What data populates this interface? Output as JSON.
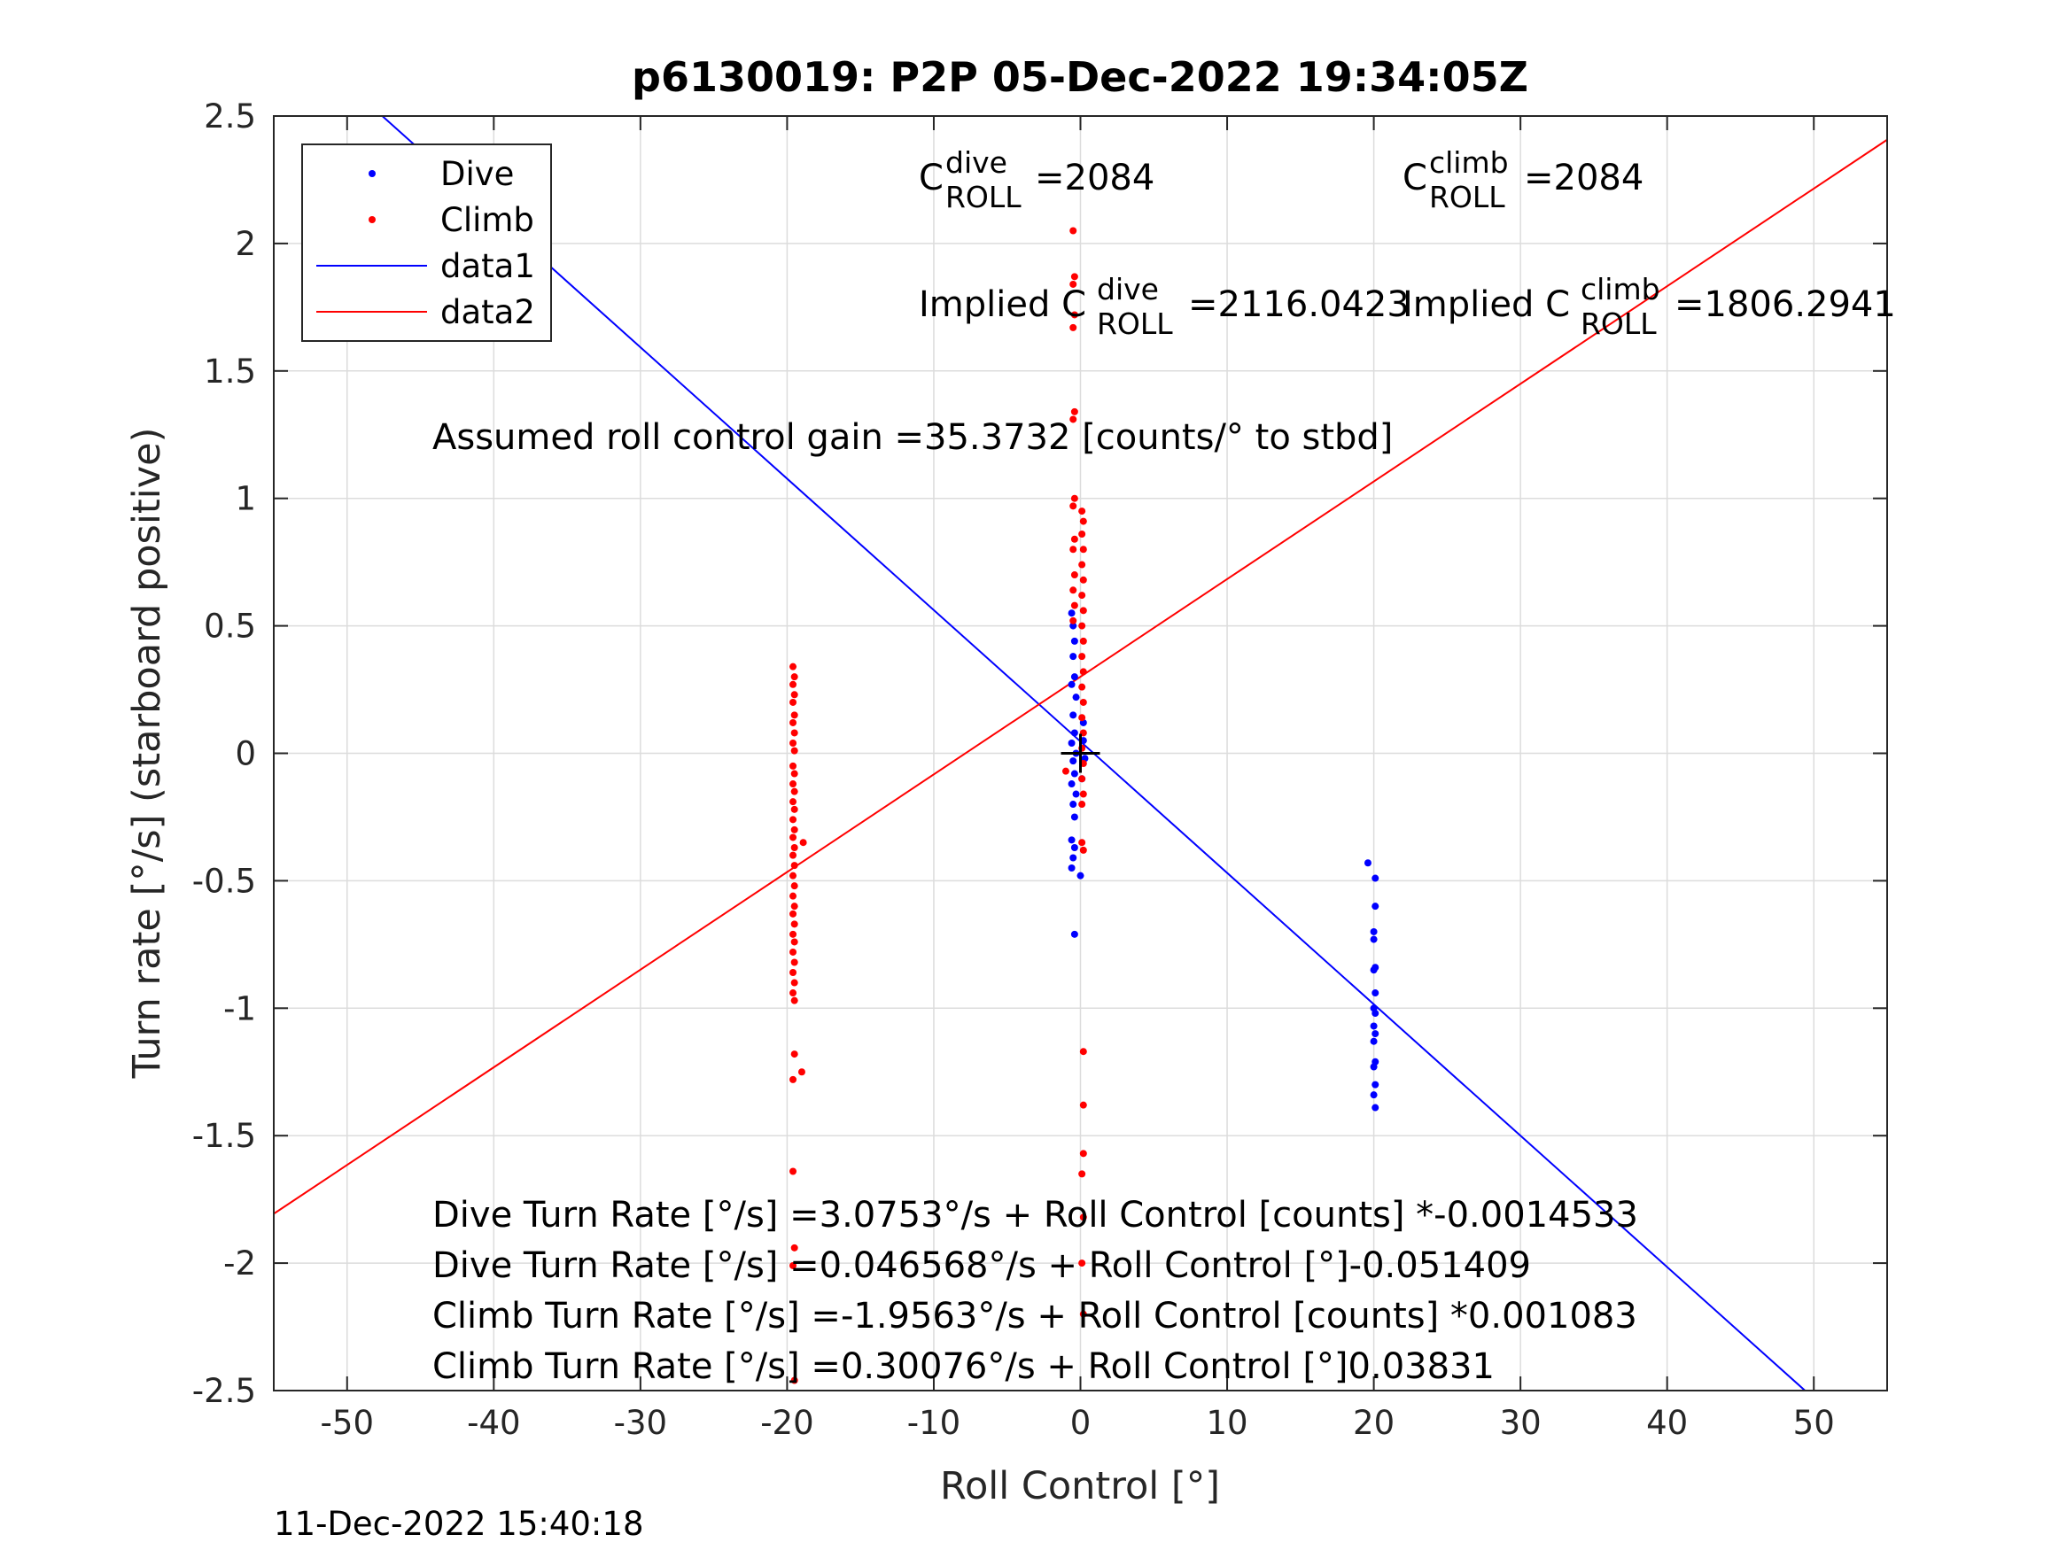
{
  "chart_data": {
    "type": "scatter",
    "title": "p6130019: P2P 05-Dec-2022 19:34:05Z",
    "xlabel": "Roll Control [°]",
    "ylabel": "Turn rate [°/s] (starboard positive)",
    "xlim": [
      -55,
      55
    ],
    "ylim": [
      -2.5,
      2.5
    ],
    "xticks": [
      -50,
      -40,
      -30,
      -20,
      -10,
      0,
      10,
      20,
      30,
      40,
      50
    ],
    "xtick_labels": [
      "-50",
      "-40",
      "-30",
      "-20",
      "-10",
      "0",
      "10",
      "20",
      "30",
      "40",
      "50"
    ],
    "yticks": [
      2.5,
      2,
      1.5,
      1,
      0.5,
      0,
      -0.5,
      -1,
      -1.5,
      -2,
      -2.5
    ],
    "ytick_labels": [
      "2.5",
      "2",
      "1.5",
      "1",
      "0.5",
      "0",
      "-0.5",
      "-1",
      "-1.5",
      "-2",
      "-2.5"
    ],
    "grid": true,
    "legend_position": "top-left",
    "series": [
      {
        "name": "Dive",
        "kind": "scatter",
        "color": "#0000ff",
        "points": [
          [
            -0.6,
            0.55
          ],
          [
            -0.5,
            0.5
          ],
          [
            -0.4,
            0.44
          ],
          [
            -0.5,
            0.38
          ],
          [
            -0.4,
            0.3
          ],
          [
            -0.6,
            0.27
          ],
          [
            -0.3,
            0.22
          ],
          [
            -0.5,
            0.15
          ],
          [
            -0.4,
            0.08
          ],
          [
            -0.6,
            0.04
          ],
          [
            -0.3,
            0.0
          ],
          [
            -0.5,
            -0.03
          ],
          [
            -0.4,
            -0.08
          ],
          [
            -0.6,
            -0.12
          ],
          [
            -0.3,
            -0.16
          ],
          [
            -0.5,
            -0.2
          ],
          [
            -0.4,
            -0.25
          ],
          [
            -0.6,
            -0.34
          ],
          [
            -0.4,
            -0.37
          ],
          [
            -0.5,
            -0.41
          ],
          [
            -0.6,
            -0.45
          ],
          [
            0.0,
            -0.48
          ],
          [
            -0.4,
            -0.71
          ],
          [
            0.2,
            0.05
          ],
          [
            0.3,
            -0.02
          ],
          [
            0.1,
            -0.1
          ],
          [
            0.2,
            0.12
          ],
          [
            19.6,
            -0.43
          ],
          [
            20.1,
            -0.49
          ],
          [
            20.1,
            -0.6
          ],
          [
            20.0,
            -0.7
          ],
          [
            20.0,
            -0.73
          ],
          [
            20.1,
            -0.84
          ],
          [
            20.0,
            -0.85
          ],
          [
            20.1,
            -0.94
          ],
          [
            20.0,
            -1.0
          ],
          [
            20.1,
            -1.02
          ],
          [
            20.0,
            -1.07
          ],
          [
            20.1,
            -1.1
          ],
          [
            20.0,
            -1.13
          ],
          [
            20.1,
            -1.21
          ],
          [
            20.0,
            -1.23
          ],
          [
            20.1,
            -1.3
          ],
          [
            20.0,
            -1.34
          ],
          [
            20.1,
            -1.39
          ]
        ]
      },
      {
        "name": "Climb",
        "kind": "scatter",
        "color": "#ff0000",
        "points": [
          [
            -19.6,
            0.34
          ],
          [
            -19.5,
            0.3
          ],
          [
            -19.6,
            0.27
          ],
          [
            -19.5,
            0.23
          ],
          [
            -19.6,
            0.2
          ],
          [
            -19.5,
            0.15
          ],
          [
            -19.6,
            0.12
          ],
          [
            -19.5,
            0.08
          ],
          [
            -19.6,
            0.04
          ],
          [
            -19.5,
            0.01
          ],
          [
            -19.6,
            -0.05
          ],
          [
            -19.5,
            -0.08
          ],
          [
            -19.6,
            -0.12
          ],
          [
            -19.5,
            -0.15
          ],
          [
            -19.6,
            -0.19
          ],
          [
            -19.5,
            -0.22
          ],
          [
            -19.6,
            -0.26
          ],
          [
            -19.5,
            -0.3
          ],
          [
            -19.6,
            -0.33
          ],
          [
            -19.5,
            -0.37
          ],
          [
            -19.6,
            -0.4
          ],
          [
            -19.5,
            -0.44
          ],
          [
            -19.6,
            -0.48
          ],
          [
            -19.5,
            -0.52
          ],
          [
            -19.6,
            -0.56
          ],
          [
            -19.5,
            -0.6
          ],
          [
            -19.6,
            -0.63
          ],
          [
            -19.5,
            -0.67
          ],
          [
            -19.6,
            -0.71
          ],
          [
            -19.5,
            -0.74
          ],
          [
            -19.6,
            -0.78
          ],
          [
            -19.5,
            -0.82
          ],
          [
            -19.6,
            -0.86
          ],
          [
            -19.5,
            -0.9
          ],
          [
            -19.6,
            -0.94
          ],
          [
            -19.5,
            -0.97
          ],
          [
            -18.9,
            -0.35
          ],
          [
            -19.5,
            -1.18
          ],
          [
            -19.0,
            -1.25
          ],
          [
            -19.6,
            -1.28
          ],
          [
            -19.6,
            -1.64
          ],
          [
            -19.5,
            -1.94
          ],
          [
            -19.6,
            -2.01
          ],
          [
            -19.5,
            -2.46
          ],
          [
            -0.5,
            2.05
          ],
          [
            -0.4,
            1.87
          ],
          [
            -0.5,
            1.84
          ],
          [
            -0.4,
            1.72
          ],
          [
            -0.5,
            1.67
          ],
          [
            -0.4,
            1.34
          ],
          [
            -0.5,
            1.31
          ],
          [
            -0.4,
            1.0
          ],
          [
            -0.5,
            0.97
          ],
          [
            -0.4,
            0.84
          ],
          [
            -0.5,
            0.8
          ],
          [
            -0.4,
            0.7
          ],
          [
            -0.5,
            0.64
          ],
          [
            -0.4,
            0.58
          ],
          [
            -0.5,
            0.52
          ],
          [
            0.1,
            0.95
          ],
          [
            0.2,
            0.91
          ],
          [
            0.1,
            0.86
          ],
          [
            0.2,
            0.8
          ],
          [
            0.1,
            0.74
          ],
          [
            0.2,
            0.68
          ],
          [
            0.1,
            0.62
          ],
          [
            0.2,
            0.56
          ],
          [
            0.1,
            0.5
          ],
          [
            0.2,
            0.44
          ],
          [
            0.1,
            0.38
          ],
          [
            0.2,
            0.32
          ],
          [
            0.1,
            0.26
          ],
          [
            0.2,
            0.2
          ],
          [
            0.1,
            0.14
          ],
          [
            0.2,
            0.08
          ],
          [
            0.1,
            0.02
          ],
          [
            0.2,
            -0.04
          ],
          [
            0.1,
            -0.1
          ],
          [
            0.2,
            -0.16
          ],
          [
            0.1,
            -0.2
          ],
          [
            -1.0,
            -0.07
          ],
          [
            0.1,
            -0.35
          ],
          [
            0.2,
            -0.38
          ],
          [
            0.2,
            -1.17
          ],
          [
            0.2,
            -1.38
          ],
          [
            0.2,
            -1.57
          ],
          [
            0.1,
            -1.65
          ],
          [
            0.2,
            -1.82
          ],
          [
            0.1,
            -2.0
          ],
          [
            0.2,
            -2.2
          ]
        ]
      },
      {
        "name": "data1",
        "kind": "line",
        "color": "#0000ff",
        "x": [
          -47.6,
          49.4
        ],
        "y": [
          2.5,
          -2.5
        ]
      },
      {
        "name": "data2",
        "kind": "line",
        "color": "#ff0000",
        "x": [
          -55,
          55
        ],
        "y": [
          -1.8064,
          2.407
        ]
      }
    ],
    "marker": {
      "x": 0,
      "y": 0,
      "symbol": "+",
      "color": "#000000"
    },
    "annotations": {
      "c_roll_dive": {
        "letter": "C",
        "sup": "dive",
        "sub": "ROLL",
        "value": "=2084"
      },
      "c_roll_climb": {
        "letter": "C",
        "sup": "climb",
        "sub": "ROLL",
        "value": "=2084"
      },
      "implied_dive": {
        "prefix": "Implied C",
        "sup": "dive",
        "sub": "ROLL",
        "value": "=2116.0423"
      },
      "implied_climb": {
        "prefix": "Implied C",
        "sup": "climb",
        "sub": "ROLL",
        "value": "=1806.2941"
      },
      "gain": "Assumed roll control gain =35.3732 [counts/° to stbd]",
      "fit_lines": [
        "Dive Turn Rate [°/s] =3.0753°/s + Roll Control [counts] *-0.0014533",
        "Dive Turn Rate [°/s] =0.046568°/s + Roll Control [°]-0.051409",
        "Climb Turn Rate [°/s] =-1.9563°/s + Roll Control [counts] *0.001083",
        "Climb Turn Rate [°/s] =0.30076°/s + Roll Control [°]0.03831"
      ]
    }
  },
  "timestamp": "11-Dec-2022 15:40:18"
}
